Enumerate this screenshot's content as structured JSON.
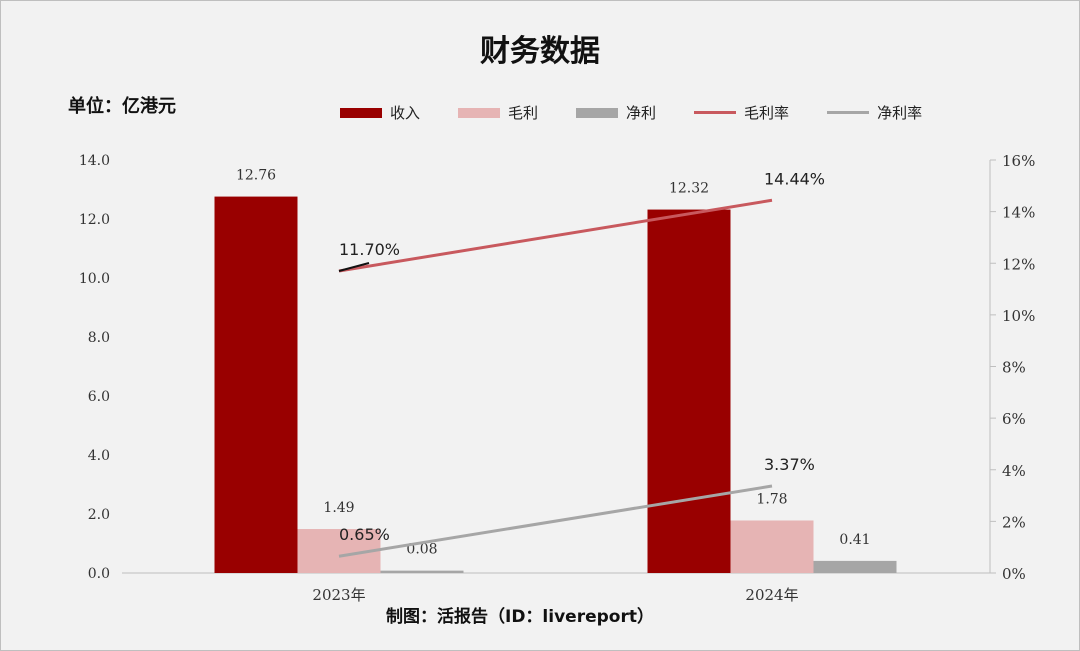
{
  "title": "财务数据",
  "unit_label": "单位：亿港元",
  "source": "制图：活报告（ID：livereport）",
  "legend": [
    {
      "label": "收入",
      "kind": "bar",
      "color": "#990000"
    },
    {
      "label": "毛利",
      "kind": "bar",
      "color": "#e6b4b4"
    },
    {
      "label": "净利",
      "kind": "bar",
      "color": "#a6a6a6"
    },
    {
      "label": "毛利率",
      "kind": "line",
      "color": "#c8595e"
    },
    {
      "label": "净利率",
      "kind": "line",
      "color": "#a6a6a6"
    }
  ],
  "chart_data": {
    "type": "bar",
    "title": "财务数据",
    "categories": [
      "2023年",
      "2024年"
    ],
    "series": [
      {
        "name": "收入",
        "type": "bar",
        "axis": "left",
        "values": [
          12.76,
          12.32
        ],
        "labels": [
          "12.76",
          "12.32"
        ],
        "color": "#990000"
      },
      {
        "name": "毛利",
        "type": "bar",
        "axis": "left",
        "values": [
          1.49,
          1.78
        ],
        "labels": [
          "1.49",
          "1.78"
        ],
        "color": "#e6b4b4"
      },
      {
        "name": "净利",
        "type": "bar",
        "axis": "left",
        "values": [
          0.08,
          0.41
        ],
        "labels": [
          "0.08",
          "0.41"
        ],
        "color": "#a6a6a6"
      },
      {
        "name": "毛利率",
        "type": "line",
        "axis": "right",
        "values": [
          11.7,
          14.44
        ],
        "labels": [
          "11.70%",
          "14.44%"
        ],
        "color": "#c8595e"
      },
      {
        "name": "净利率",
        "type": "line",
        "axis": "right",
        "values": [
          0.65,
          3.37
        ],
        "labels": [
          "0.65%",
          "3.37%"
        ],
        "color": "#a6a6a6"
      }
    ],
    "y_left": {
      "ylim": [
        0,
        14
      ],
      "ticks": [
        "0.0",
        "2.0",
        "4.0",
        "6.0",
        "8.0",
        "10.0",
        "12.0",
        "14.0"
      ]
    },
    "y_right": {
      "ylim": [
        0,
        16
      ],
      "ticks": [
        "0%",
        "2%",
        "4%",
        "6%",
        "8%",
        "10%",
        "12%",
        "14%",
        "16%"
      ]
    },
    "grid": false,
    "legend_position": "top"
  }
}
